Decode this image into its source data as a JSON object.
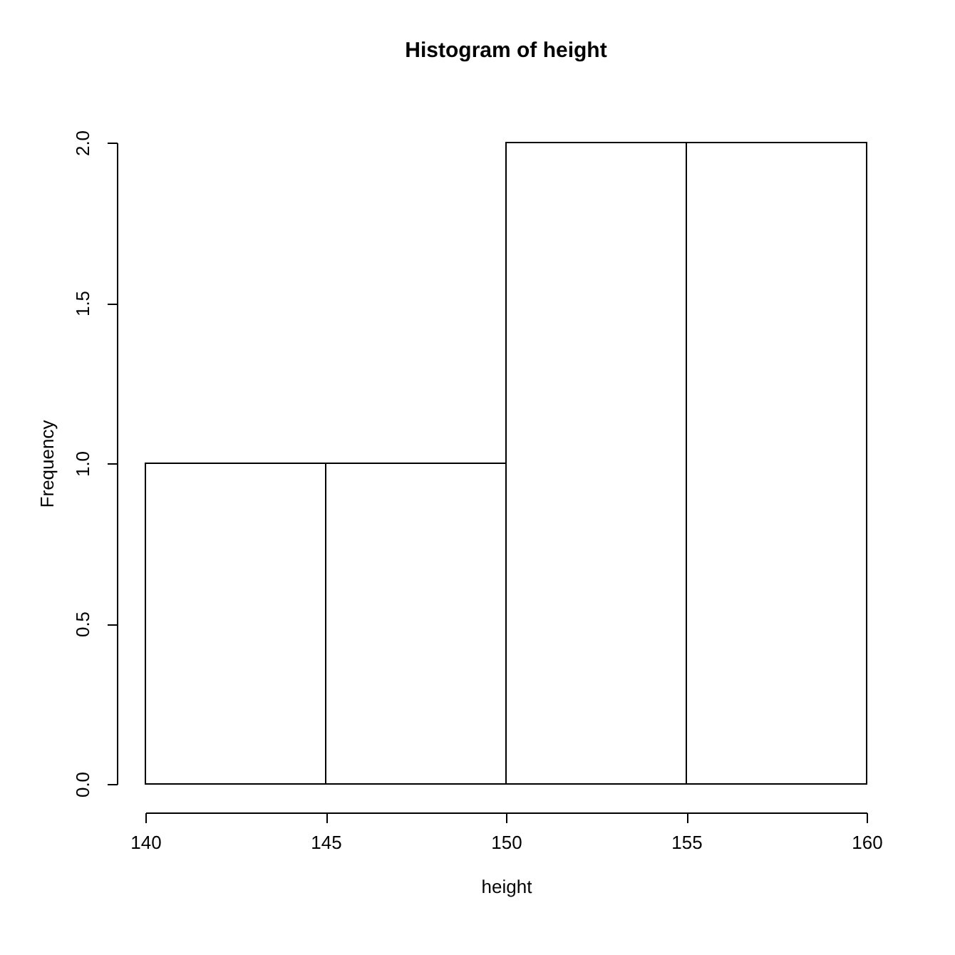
{
  "chart_data": {
    "type": "histogram",
    "title": "Histogram of height",
    "xlabel": "height",
    "ylabel": "Frequency",
    "bins": [
      140,
      145,
      150,
      155,
      160
    ],
    "values": [
      1,
      1,
      2,
      2
    ],
    "xlim": [
      140,
      160
    ],
    "xticks": [
      140,
      145,
      150,
      155,
      160
    ],
    "ylim": [
      0,
      2
    ],
    "yticks": [
      {
        "value": 0,
        "label": "0.0"
      },
      {
        "value": 0.5,
        "label": "0.5"
      },
      {
        "value": 1,
        "label": "1.0"
      },
      {
        "value": 1.5,
        "label": "1.5"
      },
      {
        "value": 2,
        "label": "2.0"
      }
    ],
    "grid": false
  }
}
